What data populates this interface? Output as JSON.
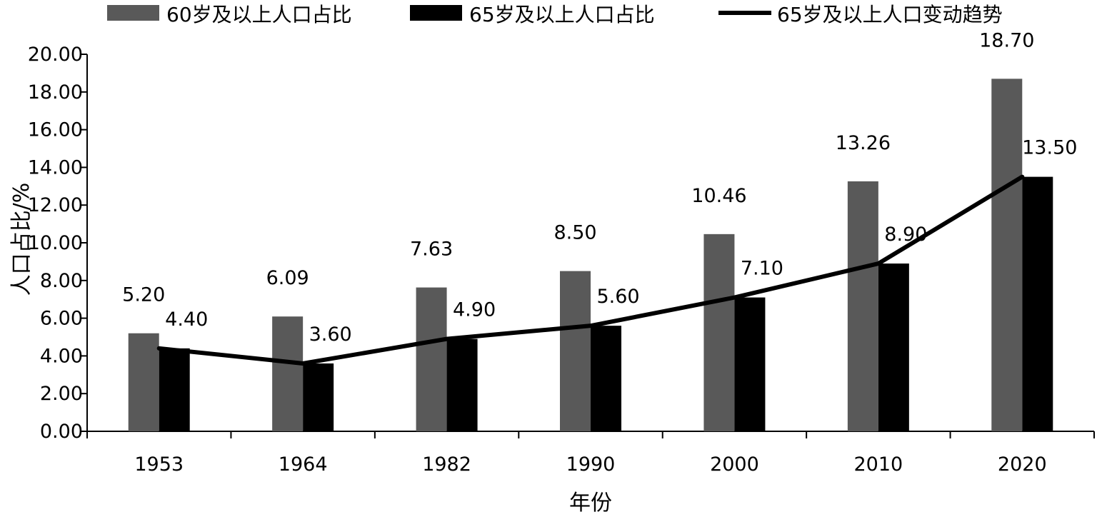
{
  "chart_data": {
    "type": "bar",
    "categories": [
      "1953",
      "1964",
      "1982",
      "1990",
      "2000",
      "2010",
      "2020"
    ],
    "series": [
      {
        "name": "60岁及以上人口占比",
        "kind": "bar",
        "color": "#595959",
        "values": [
          5.2,
          6.09,
          7.63,
          8.5,
          10.46,
          13.26,
          18.7
        ],
        "labels": [
          "5.20",
          "6.09",
          "7.63",
          "8.50",
          "10.46",
          "13.26",
          "18.70"
        ]
      },
      {
        "name": "65岁及以上人口占比",
        "kind": "bar",
        "color": "#000000",
        "values": [
          4.4,
          3.6,
          4.9,
          5.6,
          7.1,
          8.9,
          13.5
        ],
        "labels": [
          "4.40",
          "3.60",
          "4.90",
          "5.60",
          "7.10",
          "8.90",
          "13.50"
        ]
      },
      {
        "name": "65岁及以上人口变动趋势",
        "kind": "line",
        "color": "#000000",
        "values": [
          4.4,
          3.6,
          4.9,
          5.6,
          7.1,
          8.9,
          13.5
        ]
      }
    ],
    "xlabel": "年份",
    "ylabel": "人口占比/%",
    "ylim": [
      0,
      20
    ],
    "yticks": [
      "0.00",
      "2.00",
      "4.00",
      "6.00",
      "8.00",
      "10.00",
      "12.00",
      "14.00",
      "16.00",
      "18.00",
      "20.00"
    ],
    "grid": false,
    "legend_position": "top"
  }
}
